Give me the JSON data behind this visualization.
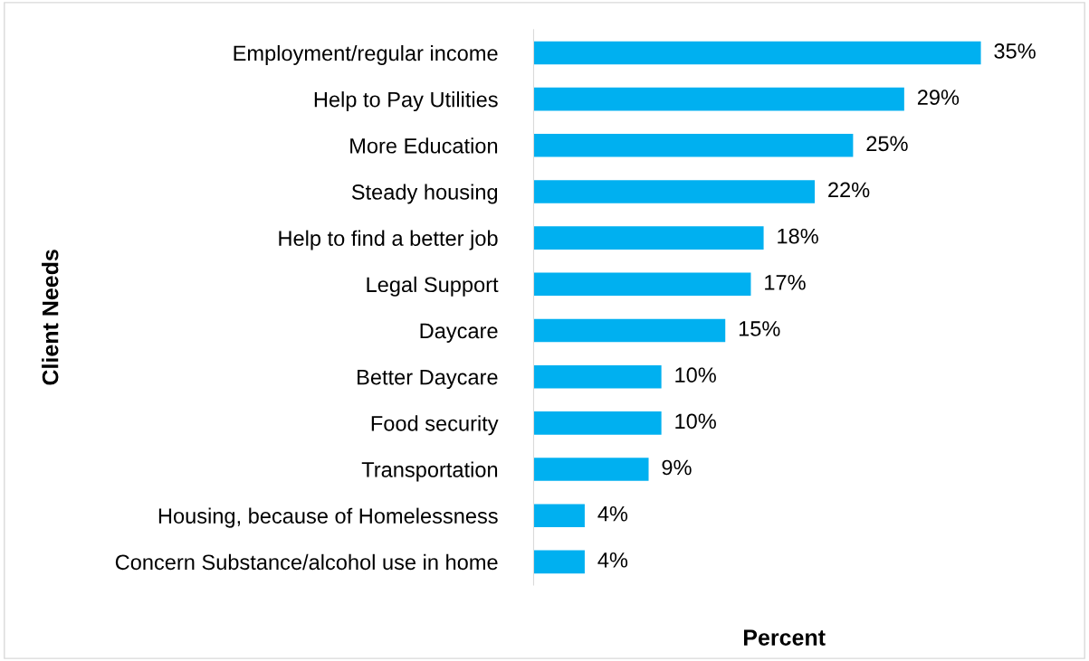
{
  "chart_data": {
    "type": "bar",
    "orientation": "horizontal",
    "xlabel": "Percent",
    "ylabel": "Client Needs",
    "categories": [
      "Employment/regular income",
      "Help to Pay Utilities",
      "More Education",
      "Steady housing",
      "Help to find a better job",
      "Legal Support",
      "Daycare",
      "Better Daycare",
      "Food security",
      "Transportation",
      "Housing, because of Homelessness",
      "Concern Substance/alcohol use in home"
    ],
    "values": [
      35,
      29,
      25,
      22,
      18,
      17,
      15,
      10,
      10,
      9,
      4,
      4
    ],
    "value_labels": [
      "35%",
      "29%",
      "25%",
      "22%",
      "18%",
      "17%",
      "15%",
      "10%",
      "10%",
      "9%",
      "4%",
      "4%"
    ],
    "color": "#00b0f0",
    "grid": false,
    "legend": false,
    "tick_labels": "y"
  }
}
